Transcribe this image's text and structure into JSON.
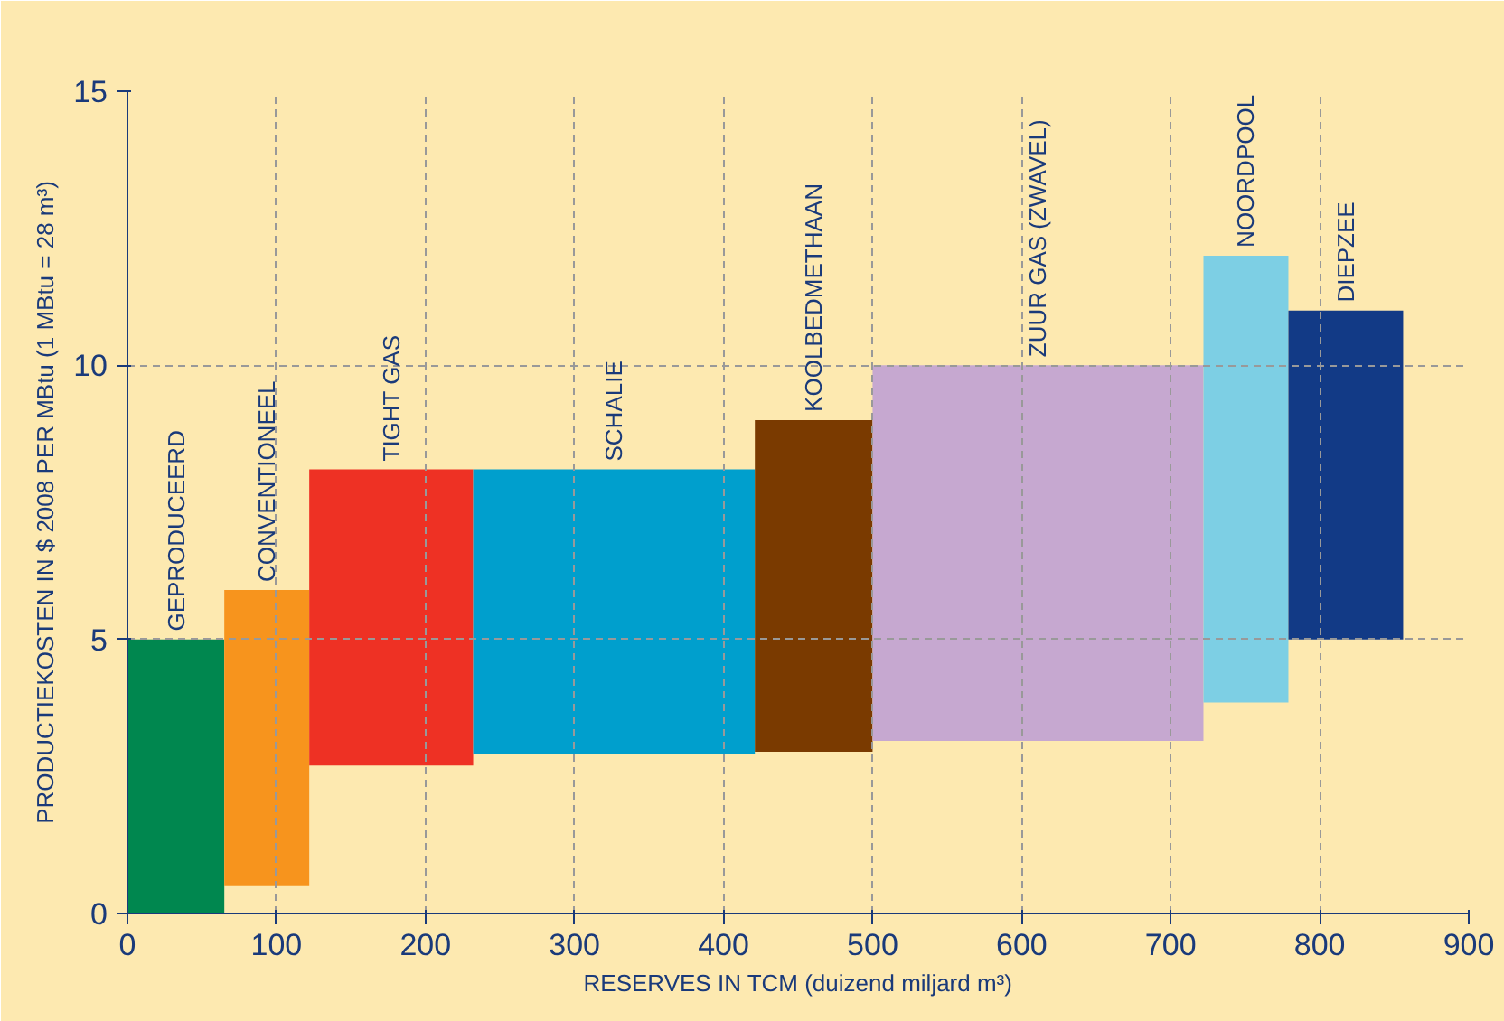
{
  "chart_data": {
    "type": "bar",
    "xlabel": "RESERVES IN TCM (duizend miljard m³)",
    "ylabel": "PRODUCTIEKOSTEN IN $ 2008 PER MBtu (1 MBtu = 28 m³)",
    "xlim": [
      0,
      900
    ],
    "xticks": [
      0,
      100,
      200,
      300,
      400,
      500,
      600,
      700,
      800,
      900
    ],
    "ylim": [
      0,
      15
    ],
    "yticks": [
      0,
      5,
      10,
      15
    ],
    "grid": true,
    "series": [
      {
        "name": "GEPRODUCEERD",
        "color": "#00874f",
        "x": [
          32.5
        ],
        "values": [
          5.0
        ],
        "base": [
          0
        ]
      },
      {
        "name": "CONVENTIONEEL",
        "color": "#f7941d",
        "x": [
          93.5
        ],
        "values": [
          5.4
        ],
        "base": [
          0.5
        ]
      },
      {
        "name": "TIGHT GAS",
        "color": "#ee3124",
        "x": [
          177
        ],
        "values": [
          5.4
        ],
        "base": [
          2.7
        ]
      },
      {
        "name": "SCHALIE",
        "color": "#009fcd",
        "x": [
          326.5
        ],
        "values": [
          5.2
        ],
        "base": [
          2.9
        ]
      },
      {
        "name": "KOOLBEDMETHAAN",
        "color": "#7a3a00",
        "x": [
          460.5
        ],
        "values": [
          6.05
        ],
        "base": [
          2.95
        ]
      },
      {
        "name": "ZUUR GAS (ZWAVEL)",
        "color": "#c6a8d0",
        "x": [
          611
        ],
        "values": [
          6.85
        ],
        "base": [
          3.15
        ]
      },
      {
        "name": "NOORDPOOL",
        "color": "#7dcfe4",
        "x": [
          750.5
        ],
        "values": [
          8.15
        ],
        "base": [
          3.85
        ]
      },
      {
        "name": "DIEPZEE",
        "color": "#123a86",
        "x": [
          817.5
        ],
        "values": [
          6.0
        ],
        "base": [
          5.0
        ]
      }
    ]
  }
}
